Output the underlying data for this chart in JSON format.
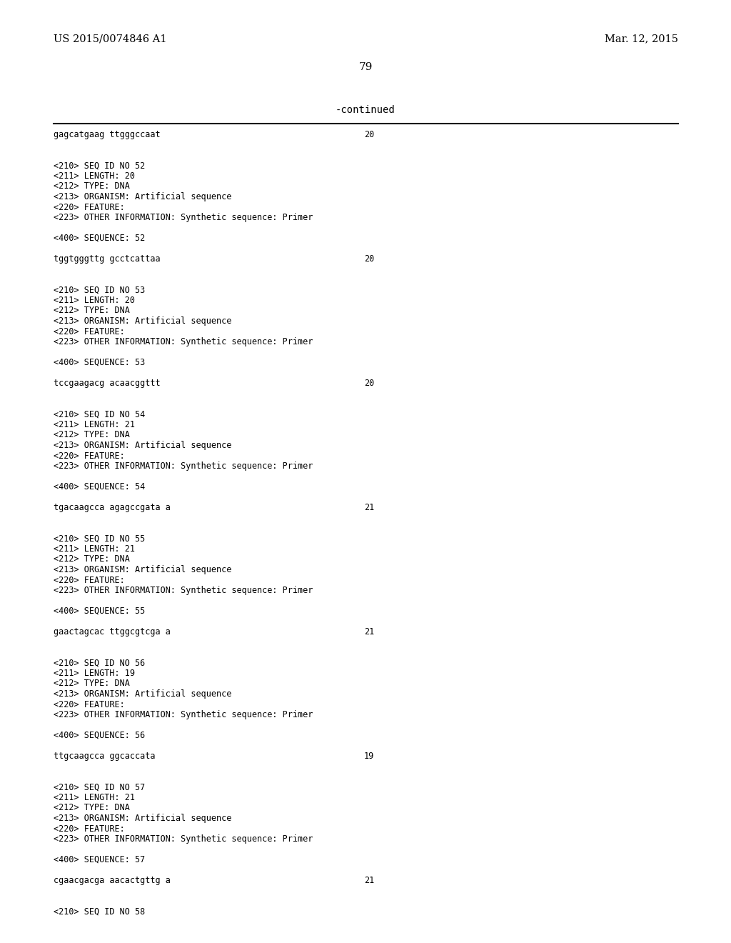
{
  "bg_color": "#ffffff",
  "header_left": "US 2015/0074846 A1",
  "header_right": "Mar. 12, 2015",
  "page_number": "79",
  "continued_label": "-continued",
  "content_blocks": [
    {
      "type": "seq_line",
      "text": "gagcatgaag ttgggccaat",
      "number": "20"
    },
    {
      "type": "blank"
    },
    {
      "type": "blank"
    },
    {
      "type": "text",
      "text": "<210> SEQ ID NO 52"
    },
    {
      "type": "text",
      "text": "<211> LENGTH: 20"
    },
    {
      "type": "text",
      "text": "<212> TYPE: DNA"
    },
    {
      "type": "text",
      "text": "<213> ORGANISM: Artificial sequence"
    },
    {
      "type": "text",
      "text": "<220> FEATURE:"
    },
    {
      "type": "text",
      "text": "<223> OTHER INFORMATION: Synthetic sequence: Primer"
    },
    {
      "type": "blank"
    },
    {
      "type": "text",
      "text": "<400> SEQUENCE: 52"
    },
    {
      "type": "blank"
    },
    {
      "type": "seq_line",
      "text": "tggtgggttg gcctcattaa",
      "number": "20"
    },
    {
      "type": "blank"
    },
    {
      "type": "blank"
    },
    {
      "type": "text",
      "text": "<210> SEQ ID NO 53"
    },
    {
      "type": "text",
      "text": "<211> LENGTH: 20"
    },
    {
      "type": "text",
      "text": "<212> TYPE: DNA"
    },
    {
      "type": "text",
      "text": "<213> ORGANISM: Artificial sequence"
    },
    {
      "type": "text",
      "text": "<220> FEATURE:"
    },
    {
      "type": "text",
      "text": "<223> OTHER INFORMATION: Synthetic sequence: Primer"
    },
    {
      "type": "blank"
    },
    {
      "type": "text",
      "text": "<400> SEQUENCE: 53"
    },
    {
      "type": "blank"
    },
    {
      "type": "seq_line",
      "text": "tccgaagacg acaacggttt",
      "number": "20"
    },
    {
      "type": "blank"
    },
    {
      "type": "blank"
    },
    {
      "type": "text",
      "text": "<210> SEQ ID NO 54"
    },
    {
      "type": "text",
      "text": "<211> LENGTH: 21"
    },
    {
      "type": "text",
      "text": "<212> TYPE: DNA"
    },
    {
      "type": "text",
      "text": "<213> ORGANISM: Artificial sequence"
    },
    {
      "type": "text",
      "text": "<220> FEATURE:"
    },
    {
      "type": "text",
      "text": "<223> OTHER INFORMATION: Synthetic sequence: Primer"
    },
    {
      "type": "blank"
    },
    {
      "type": "text",
      "text": "<400> SEQUENCE: 54"
    },
    {
      "type": "blank"
    },
    {
      "type": "seq_line",
      "text": "tgacaagcca agagccgata a",
      "number": "21"
    },
    {
      "type": "blank"
    },
    {
      "type": "blank"
    },
    {
      "type": "text",
      "text": "<210> SEQ ID NO 55"
    },
    {
      "type": "text",
      "text": "<211> LENGTH: 21"
    },
    {
      "type": "text",
      "text": "<212> TYPE: DNA"
    },
    {
      "type": "text",
      "text": "<213> ORGANISM: Artificial sequence"
    },
    {
      "type": "text",
      "text": "<220> FEATURE:"
    },
    {
      "type": "text",
      "text": "<223> OTHER INFORMATION: Synthetic sequence: Primer"
    },
    {
      "type": "blank"
    },
    {
      "type": "text",
      "text": "<400> SEQUENCE: 55"
    },
    {
      "type": "blank"
    },
    {
      "type": "seq_line",
      "text": "gaactagcac ttggcgtcga a",
      "number": "21"
    },
    {
      "type": "blank"
    },
    {
      "type": "blank"
    },
    {
      "type": "text",
      "text": "<210> SEQ ID NO 56"
    },
    {
      "type": "text",
      "text": "<211> LENGTH: 19"
    },
    {
      "type": "text",
      "text": "<212> TYPE: DNA"
    },
    {
      "type": "text",
      "text": "<213> ORGANISM: Artificial sequence"
    },
    {
      "type": "text",
      "text": "<220> FEATURE:"
    },
    {
      "type": "text",
      "text": "<223> OTHER INFORMATION: Synthetic sequence: Primer"
    },
    {
      "type": "blank"
    },
    {
      "type": "text",
      "text": "<400> SEQUENCE: 56"
    },
    {
      "type": "blank"
    },
    {
      "type": "seq_line",
      "text": "ttgcaagcca ggcaccata",
      "number": "19"
    },
    {
      "type": "blank"
    },
    {
      "type": "blank"
    },
    {
      "type": "text",
      "text": "<210> SEQ ID NO 57"
    },
    {
      "type": "text",
      "text": "<211> LENGTH: 21"
    },
    {
      "type": "text",
      "text": "<212> TYPE: DNA"
    },
    {
      "type": "text",
      "text": "<213> ORGANISM: Artificial sequence"
    },
    {
      "type": "text",
      "text": "<220> FEATURE:"
    },
    {
      "type": "text",
      "text": "<223> OTHER INFORMATION: Synthetic sequence: Primer"
    },
    {
      "type": "blank"
    },
    {
      "type": "text",
      "text": "<400> SEQUENCE: 57"
    },
    {
      "type": "blank"
    },
    {
      "type": "seq_line",
      "text": "cgaacgacga aacactgttg a",
      "number": "21"
    },
    {
      "type": "blank"
    },
    {
      "type": "blank"
    },
    {
      "type": "text",
      "text": "<210> SEQ ID NO 58"
    }
  ]
}
